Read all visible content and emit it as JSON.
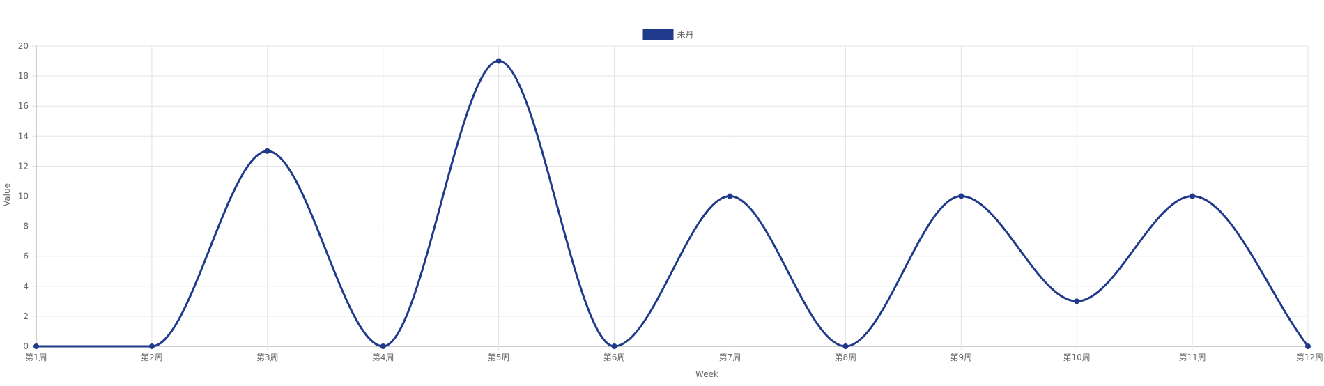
{
  "chart_data": {
    "type": "line",
    "title": "",
    "xlabel": "Week",
    "ylabel": "Value",
    "categories": [
      "第1周",
      "第2周",
      "第3周",
      "第4周",
      "第5周",
      "第6周",
      "第7周",
      "第8周",
      "第9周",
      "第10周",
      "第11周",
      "第12周"
    ],
    "ylim": [
      0,
      20
    ],
    "yticks": [
      0,
      2,
      4,
      6,
      8,
      10,
      12,
      14,
      16,
      18,
      20
    ],
    "grid": true,
    "legend_position": "top-center",
    "series": [
      {
        "name": "朱丹",
        "color": "#1f3a8a",
        "values": [
          0,
          0,
          13,
          0,
          19,
          0,
          10,
          0,
          10,
          3,
          10,
          0
        ]
      }
    ]
  }
}
